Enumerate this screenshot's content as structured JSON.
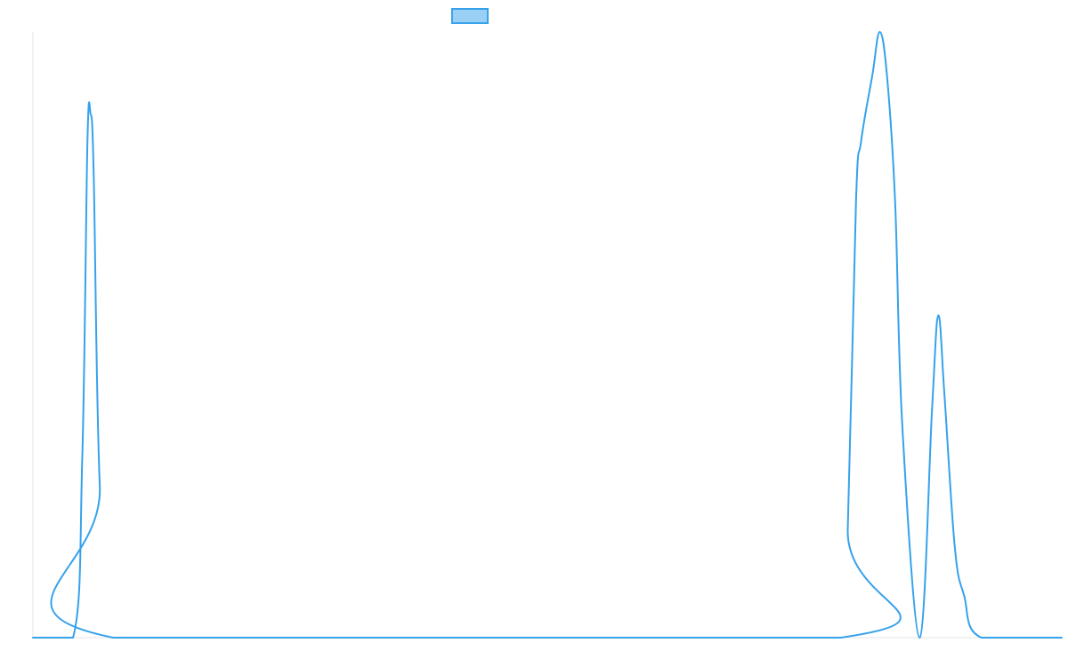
{
  "chart_data": {
    "type": "line",
    "title": "",
    "xlabel": "",
    "ylabel": "",
    "x_range": [
      0,
      1
    ],
    "y_range": [
      0,
      1
    ],
    "grid": false,
    "legend": {
      "placement": "top-center",
      "entries": [
        {
          "label": "",
          "color": "#36a2eb",
          "fill_color": "#9ad0f5"
        }
      ]
    },
    "series": [
      {
        "color": "#36a2eb",
        "points": [
          [
            0.0,
            0.0
          ],
          [
            0.039,
            0.0
          ],
          [
            0.048,
            0.3
          ],
          [
            0.053,
            0.82
          ],
          [
            0.056,
            0.865
          ],
          [
            0.059,
            0.77
          ],
          [
            0.065,
            0.25
          ],
          [
            0.078,
            0.0
          ],
          [
            0.785,
            0.0
          ],
          [
            0.792,
            0.18
          ],
          [
            0.8,
            0.72
          ],
          [
            0.805,
            0.82
          ],
          [
            0.816,
            0.93
          ],
          [
            0.823,
            1.0
          ],
          [
            0.83,
            0.93
          ],
          [
            0.838,
            0.72
          ],
          [
            0.845,
            0.35
          ],
          [
            0.862,
            0.0
          ],
          [
            0.874,
            0.38
          ],
          [
            0.88,
            0.532
          ],
          [
            0.886,
            0.4
          ],
          [
            0.896,
            0.15
          ],
          [
            0.905,
            0.07
          ],
          [
            0.922,
            0.0
          ],
          [
            1.0,
            0.0
          ]
        ]
      }
    ]
  },
  "colors": {
    "line": "#36a2eb",
    "legend_fill": "#9ad0f5",
    "axis": "#e6e6e6"
  }
}
